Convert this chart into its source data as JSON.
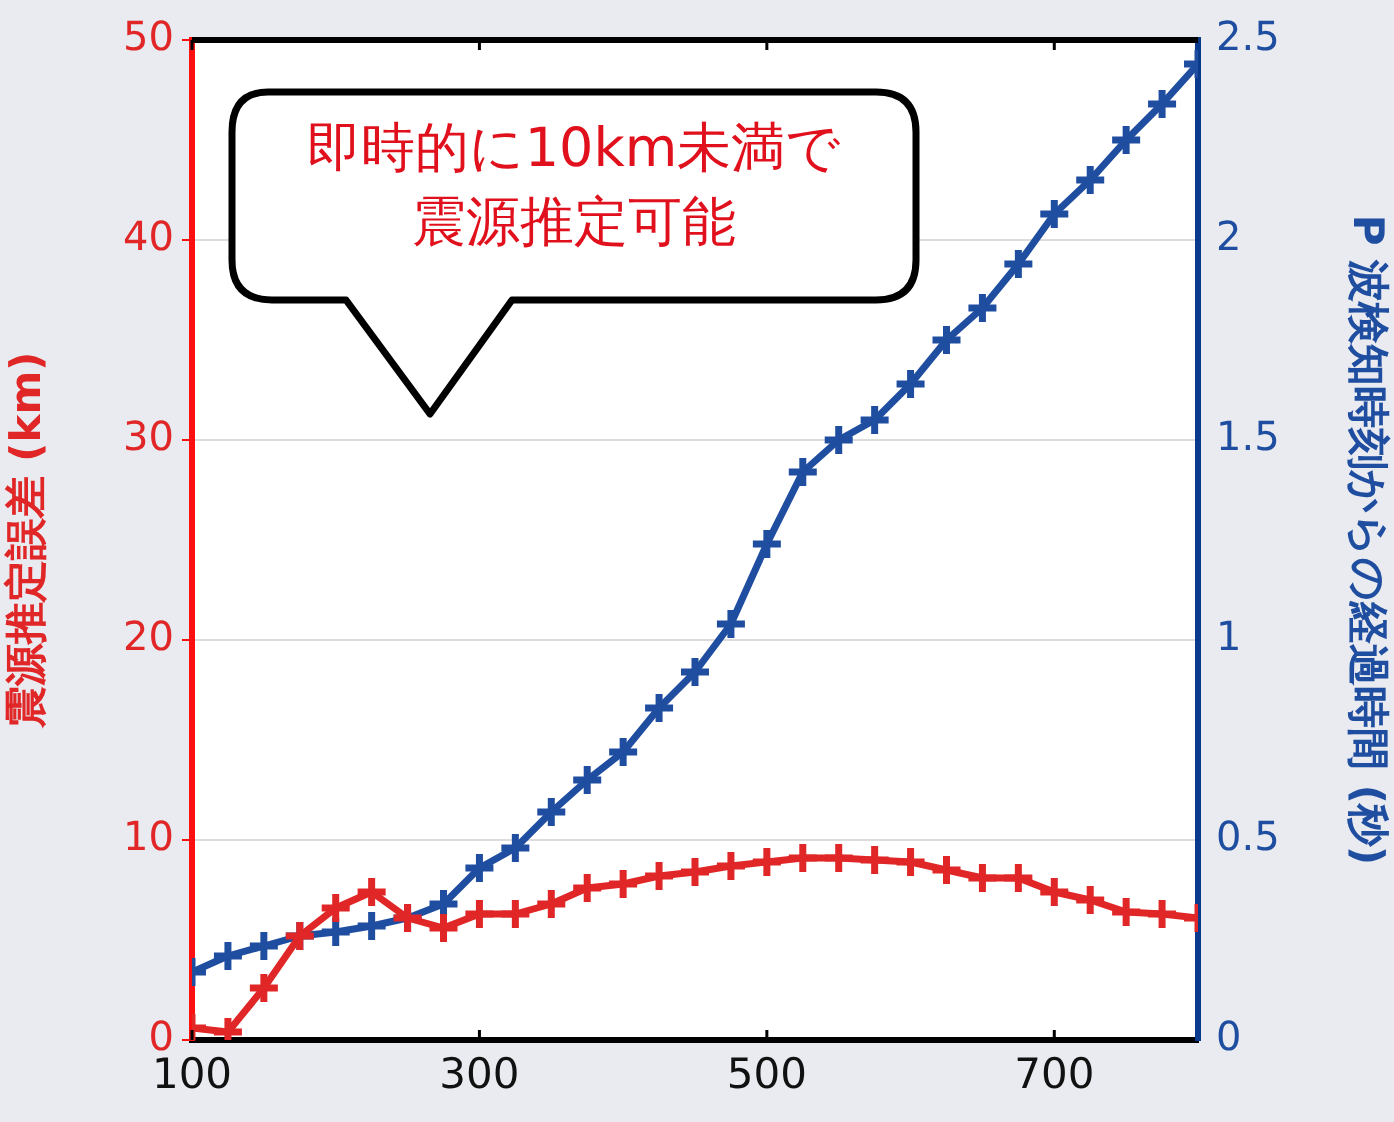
{
  "chart_data": {
    "type": "line",
    "ylabel": "震源推定誤差 (km)",
    "y2label": "P 波検知時刻からの経過時間 (秒)",
    "annotations": [
      "即時的に10km未満で震源推定可能"
    ],
    "x": [
      100,
      125,
      150,
      175,
      200,
      225,
      250,
      275,
      300,
      325,
      350,
      375,
      400,
      425,
      450,
      475,
      500,
      525,
      550,
      575,
      600,
      625,
      650,
      675,
      700,
      725,
      750,
      775,
      800
    ],
    "series": [
      {
        "color": "#e02626",
        "marker": "cross",
        "values": [
          0.6,
          0.4,
          2.6,
          5.2,
          6.6,
          7.4,
          6.1,
          5.6,
          6.3,
          6.3,
          6.8,
          7.6,
          7.8,
          8.2,
          8.4,
          8.7,
          8.9,
          9.1,
          9.1,
          9.0,
          8.9,
          8.5,
          8.1,
          8.1,
          7.4,
          7.0,
          6.4,
          6.3,
          6.1
        ]
      },
      {
        "color": "#1f4ea0",
        "marker": "cross",
        "axis": "y2",
        "values": [
          0.17,
          0.21,
          0.235,
          0.26,
          0.27,
          0.285,
          0.305,
          0.34,
          0.43,
          0.48,
          0.57,
          0.65,
          0.72,
          0.83,
          0.92,
          1.04,
          1.24,
          1.42,
          1.5,
          1.55,
          1.64,
          1.75,
          1.83,
          1.94,
          2.065,
          2.15,
          2.25,
          2.34,
          2.44
        ]
      }
    ],
    "xlim": [
      100,
      800
    ],
    "xticks": [
      100,
      300,
      500,
      700
    ],
    "ylim": [
      0,
      50
    ],
    "yticks": [
      0,
      10,
      20,
      30,
      40,
      50
    ],
    "y2lim": [
      0,
      2.5
    ],
    "y2ticks": [
      0,
      {
        "value": 0.5,
        "label": "0.5"
      },
      1,
      {
        "value": 1.5,
        "label": "1.5"
      },
      2,
      {
        "value": 2.5,
        "label": "2.5"
      }
    ],
    "grid": "y",
    "legend": false
  }
}
